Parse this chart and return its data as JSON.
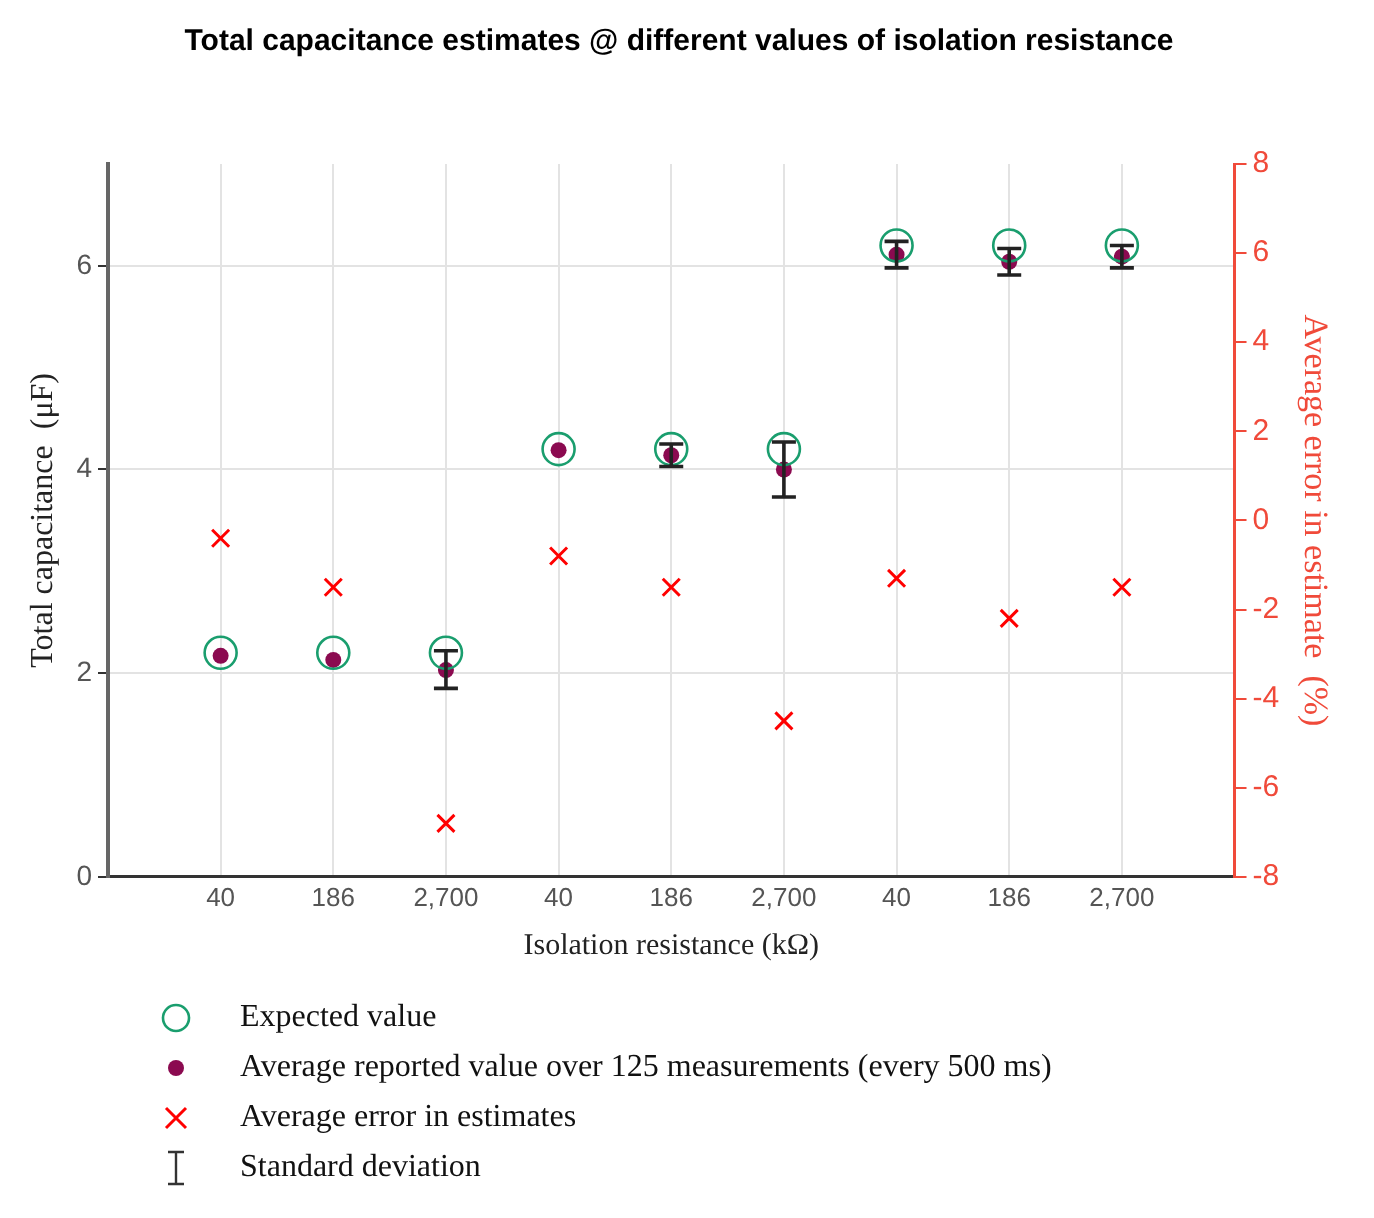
{
  "chart_data": {
    "type": "scatter",
    "title": "Total capacitance estimates @ different values of isolation resistance",
    "categories": [
      "40",
      "186",
      "2,700",
      "40",
      "186",
      "2,700",
      "40",
      "186",
      "2,700"
    ],
    "xlabel": "Isolation resistance (kΩ)",
    "ylabel": "Total capacitance  (μF)",
    "y2label": "Average error in estimate  (%)",
    "ylim": [
      0,
      7
    ],
    "yticks": [
      0,
      2,
      4,
      6
    ],
    "y2lim": [
      -8,
      8
    ],
    "y2ticks": [
      -8,
      -6,
      -4,
      -2,
      0,
      2,
      4,
      6,
      8
    ],
    "grid": true,
    "legend": "bottom left",
    "series": [
      {
        "name": "Expected value",
        "color": "#1a9e6e",
        "marker": "circle",
        "values": [
          2.2,
          2.2,
          2.2,
          4.2,
          4.2,
          4.2,
          6.2,
          6.2,
          6.2
        ]
      },
      {
        "name": "Average reported value over 125 measurements (every 500 ms)",
        "color": "#8b0a50",
        "marker": "circle",
        "values": [
          2.17,
          2.13,
          2.03,
          4.19,
          4.14,
          4.0,
          6.11,
          6.04,
          6.09
        ],
        "errors": [
          null,
          null,
          [
            1.85,
            2.22
          ],
          null,
          0.11,
          0.27,
          0.13,
          0.13,
          0.11
        ]
      },
      {
        "name": "Average error in estimates",
        "color": "#ff0000",
        "marker": "cross",
        "axis": "y2",
        "values": [
          -0.4,
          -1.5,
          -6.8,
          -0.8,
          -1.5,
          -4.5,
          -1.3,
          -2.2,
          -1.5
        ]
      }
    ],
    "annotations": [
      "Standard deviation"
    ]
  }
}
